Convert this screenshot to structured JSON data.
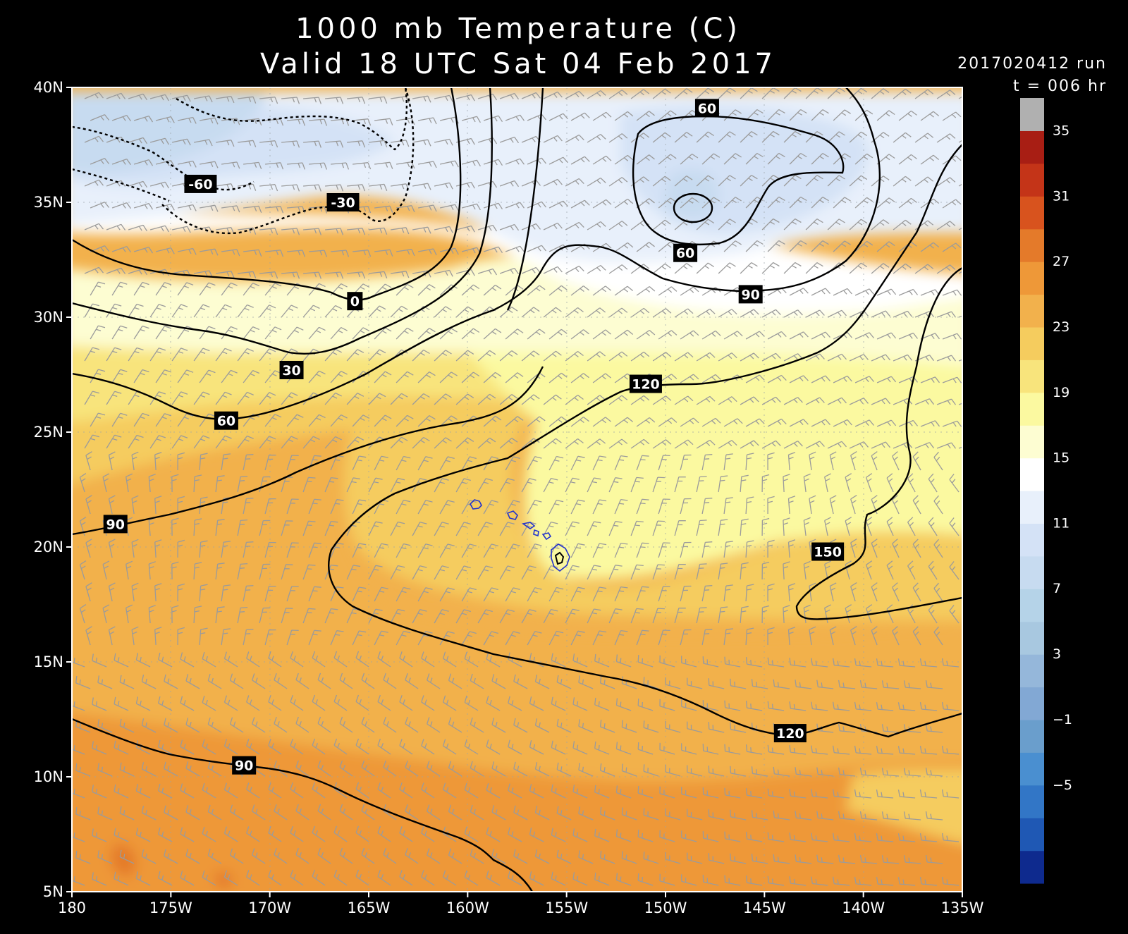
{
  "title": {
    "line1": "1000 mb Temperature (C)",
    "line2": "Valid 18 UTC Sat 04 Feb 2017"
  },
  "run_info": {
    "run": "2017020412 run",
    "forecast_hour": "t = 006 hr"
  },
  "map": {
    "lon_range": [
      -180,
      -135
    ],
    "lat_range": [
      5,
      40
    ],
    "x_tick_labels": [
      "180",
      "175W",
      "170W",
      "165W",
      "160W",
      "155W",
      "150W",
      "145W",
      "140W",
      "135W"
    ],
    "y_tick_labels": [
      "40N",
      "35N",
      "30N",
      "25N",
      "20N",
      "15N",
      "10N",
      "5N"
    ],
    "gridlines": true,
    "wind_barbs": true,
    "coastline_color": "#2233cc",
    "contour_color": "#000000",
    "contour_labels": [
      {
        "text": "-60",
        "lon": -173.5,
        "lat": 35.8
      },
      {
        "text": "-30",
        "lon": -166.3,
        "lat": 35.0
      },
      {
        "text": "0",
        "lon": -165.7,
        "lat": 30.7
      },
      {
        "text": "30",
        "lon": -168.9,
        "lat": 27.7
      },
      {
        "text": "60",
        "lon": -172.2,
        "lat": 25.5
      },
      {
        "text": "90",
        "lon": -177.8,
        "lat": 21.0
      },
      {
        "text": "60",
        "lon": -147.9,
        "lat": 39.1
      },
      {
        "text": "60",
        "lon": -149.0,
        "lat": 32.8
      },
      {
        "text": "90",
        "lon": -145.7,
        "lat": 31.0
      },
      {
        "text": "120",
        "lon": -151.0,
        "lat": 27.1
      },
      {
        "text": "150",
        "lon": -141.8,
        "lat": 19.8
      },
      {
        "text": "120",
        "lon": -143.7,
        "lat": 11.9
      },
      {
        "text": "90",
        "lon": -171.3,
        "lat": 10.5
      }
    ]
  },
  "colorbar": {
    "labels": [
      "35",
      "31",
      "27",
      "23",
      "19",
      "15",
      "11",
      "7",
      "3",
      "−1",
      "−5"
    ],
    "colors": [
      "#0e2a8e",
      "#1f58b4",
      "#3276c6",
      "#4a8fd0",
      "#6a9ecc",
      "#82a8d4",
      "#95b7da",
      "#a8c8e0",
      "#b5d3e8",
      "#c7dbf0",
      "#d4e2f6",
      "#e8f0fb",
      "#ffffff",
      "#fdfdd2",
      "#fbf9a0",
      "#f8e47c",
      "#f5cc5e",
      "#f2b14c",
      "#ee9838",
      "#e47a2a",
      "#d8531e",
      "#c43418",
      "#a81e14",
      "#b0b0b0"
    ]
  }
}
